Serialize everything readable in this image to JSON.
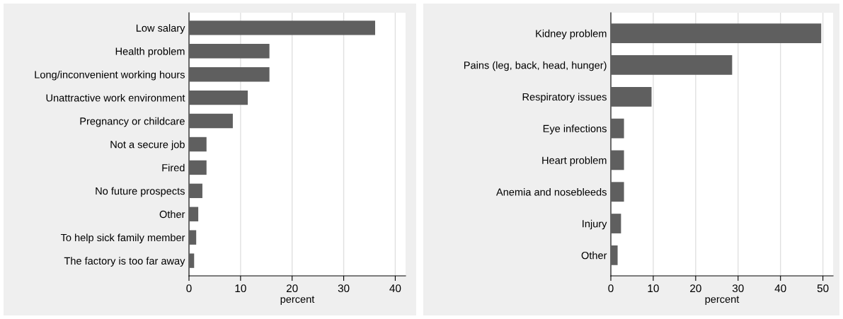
{
  "chart_data": [
    {
      "type": "bar",
      "orientation": "horizontal",
      "xlabel": "percent",
      "categories": [
        "Low salary",
        "Health problem",
        "Long/inconvenient working hours",
        "Unattractive work environment",
        "Pregnancy or childcare",
        "Not a secure job",
        "Fired",
        "No future prospects",
        "Other",
        "To help sick family member",
        "The factory is too far away"
      ],
      "values": [
        36.1,
        15.6,
        15.6,
        11.4,
        8.5,
        3.4,
        3.4,
        2.6,
        1.8,
        1.4,
        1.0
      ],
      "color": "#5f5f5f",
      "xlim": [
        0,
        42
      ],
      "xticks": [
        0,
        10,
        20,
        30,
        40
      ],
      "grid": "x"
    },
    {
      "type": "bar",
      "orientation": "horizontal",
      "xlabel": "percent",
      "categories": [
        "Kidney problem",
        "Pains (leg, back, head, hunger)",
        "Respiratory issues",
        "Eye infections",
        "Heart problem",
        "Anemia and nosebleeds",
        "Injury",
        "Other"
      ],
      "values": [
        49.6,
        28.6,
        9.6,
        3.1,
        3.1,
        3.1,
        2.4,
        1.6
      ],
      "color": "#5f5f5f",
      "xlim": [
        0,
        52.4
      ],
      "xticks": [
        0,
        10,
        20,
        30,
        40,
        50
      ],
      "grid": "x"
    }
  ]
}
